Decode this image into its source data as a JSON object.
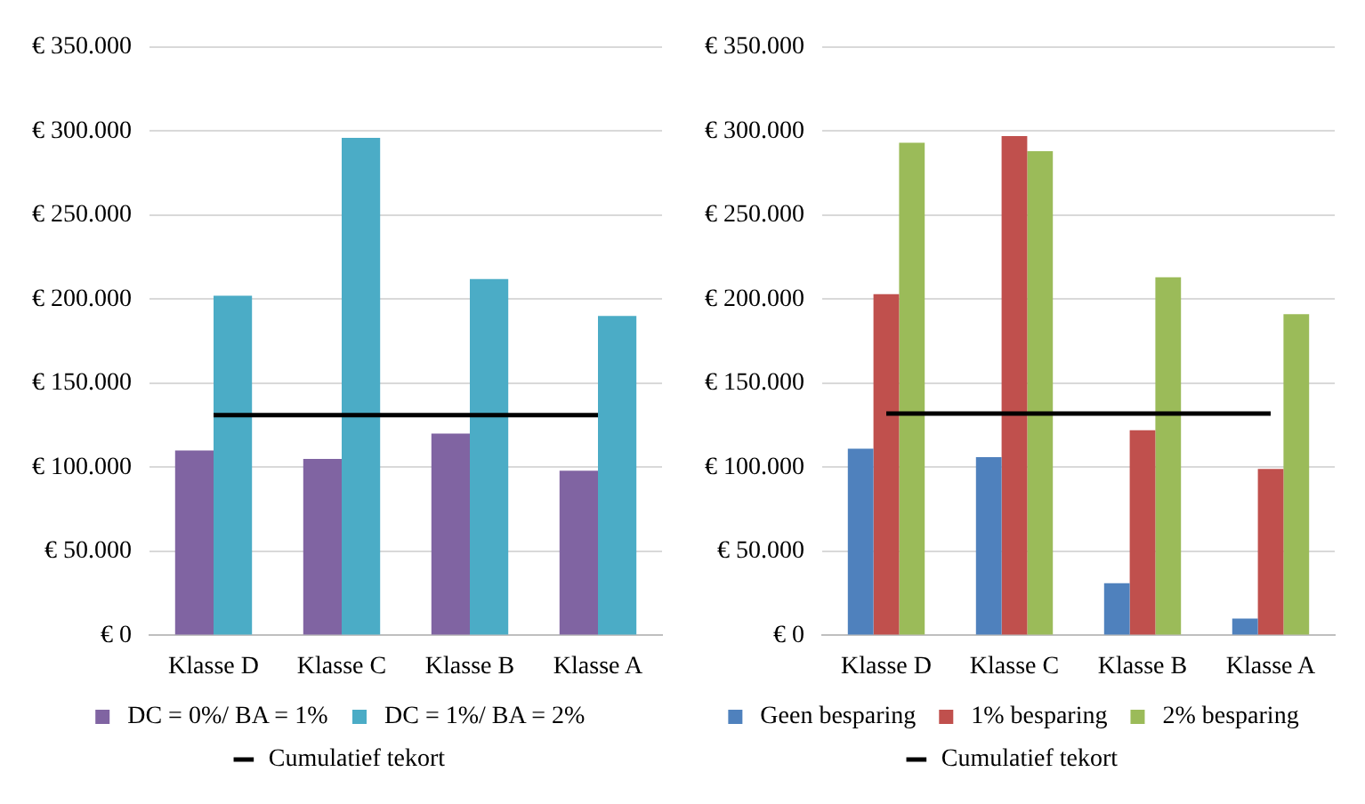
{
  "chart_data": [
    {
      "type": "bar",
      "categories": [
        "Klasse D",
        "Klasse C",
        "Klasse B",
        "Klasse A"
      ],
      "series": [
        {
          "name": "DC = 0%/ BA = 1%",
          "color": "#8064a2",
          "values": [
            110000,
            105000,
            120000,
            98000
          ]
        },
        {
          "name": "DC = 1%/ BA = 2%",
          "color": "#4bacc6",
          "values": [
            202000,
            296000,
            212000,
            190000
          ]
        },
        {
          "name": "Cumulatief tekort",
          "type": "line",
          "color": "#000000",
          "values": [
            131000,
            131000,
            131000,
            131000
          ]
        }
      ],
      "ylim": [
        0,
        350000
      ],
      "yticks": [
        {
          "value": 0,
          "label": "€ 0"
        },
        {
          "value": 50000,
          "label": "€ 50.000"
        },
        {
          "value": 100000,
          "label": "€ 100.000"
        },
        {
          "value": 150000,
          "label": "€ 150.000"
        },
        {
          "value": 200000,
          "label": "€ 200.000"
        },
        {
          "value": 250000,
          "label": "€ 250.000"
        },
        {
          "value": 300000,
          "label": "€ 300.000"
        },
        {
          "value": 350000,
          "label": "€ 350.000"
        }
      ],
      "grid": "y",
      "legend": "bottom",
      "marker": "none"
    },
    {
      "type": "bar",
      "categories": [
        "Klasse D",
        "Klasse C",
        "Klasse B",
        "Klasse A"
      ],
      "series": [
        {
          "name": "Geen besparing",
          "color": "#4f81bd",
          "values": [
            111000,
            106000,
            31000,
            10000
          ]
        },
        {
          "name": "1% besparing",
          "color": "#c0504d",
          "values": [
            203000,
            297000,
            122000,
            99000
          ]
        },
        {
          "name": "2% besparing",
          "color": "#9bbb59",
          "values": [
            293000,
            288000,
            213000,
            191000
          ]
        },
        {
          "name": "Cumulatief tekort",
          "type": "line",
          "color": "#000000",
          "values": [
            132000,
            132000,
            132000,
            132000
          ]
        }
      ],
      "ylim": [
        0,
        350000
      ],
      "yticks": [
        {
          "value": 0,
          "label": "€ 0"
        },
        {
          "value": 50000,
          "label": "€ 50.000"
        },
        {
          "value": 100000,
          "label": "€ 100.000"
        },
        {
          "value": 150000,
          "label": "€ 150.000"
        },
        {
          "value": 200000,
          "label": "€ 200.000"
        },
        {
          "value": 250000,
          "label": "€ 250.000"
        },
        {
          "value": 300000,
          "label": "€ 300.000"
        },
        {
          "value": 350000,
          "label": "€ 350.000"
        }
      ],
      "grid": "y",
      "legend": "bottom",
      "marker": "none"
    }
  ]
}
